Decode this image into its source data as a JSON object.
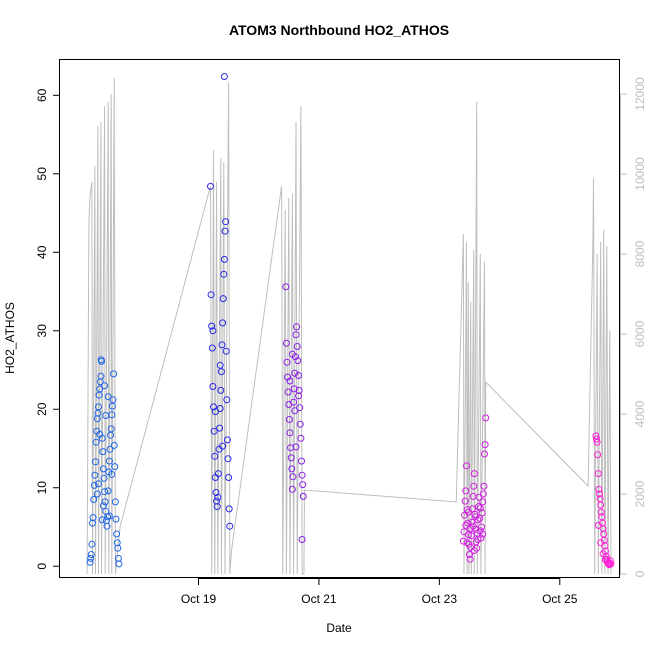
{
  "chart_data": {
    "type": "scatter",
    "title": "ATOM3 Northbound HO2_ATHOS",
    "xlabel": "Date",
    "ylabel": "HO2_ATHOS",
    "x_ticks": [
      "Oct 19",
      "Oct 21",
      "Oct 23",
      "Oct 25"
    ],
    "x_tick_days": [
      19,
      21,
      23,
      25
    ],
    "xlim_days": [
      16.7,
      26.0
    ],
    "ylim": [
      -1.5,
      64.5
    ],
    "y_ticks": [
      0,
      10,
      20,
      30,
      40,
      50,
      60
    ],
    "y2lim": [
      -100,
      12850
    ],
    "y2_ticks": [
      0,
      2000,
      4000,
      6000,
      8000,
      10000,
      12000
    ],
    "y2_series": "altitude",
    "color_scale": [
      "#1f66e5",
      "#2a2ae8",
      "#8a1fe8",
      "#d21ee0",
      "#ff1ed6"
    ],
    "series": [
      {
        "segment": 1,
        "points": [
          [
            17.2,
            0.5
          ],
          [
            17.21,
            1.0
          ],
          [
            17.22,
            1.5
          ],
          [
            17.23,
            2.8
          ],
          [
            17.24,
            5.5
          ],
          [
            17.25,
            6.2
          ],
          [
            17.26,
            8.5
          ],
          [
            17.27,
            10.3
          ],
          [
            17.28,
            11.6
          ],
          [
            17.29,
            13.3
          ],
          [
            17.3,
            15.8
          ],
          [
            17.31,
            17.2
          ],
          [
            17.32,
            18.8
          ],
          [
            17.33,
            19.5
          ],
          [
            17.34,
            20.3
          ],
          [
            17.35,
            21.8
          ],
          [
            17.36,
            22.6
          ],
          [
            17.37,
            23.5
          ],
          [
            17.38,
            24.2
          ],
          [
            17.385,
            26.3
          ],
          [
            17.39,
            26.1
          ],
          [
            17.4,
            16.3
          ],
          [
            17.41,
            14.6
          ],
          [
            17.42,
            12.4
          ],
          [
            17.43,
            11.2
          ],
          [
            17.44,
            9.5
          ],
          [
            17.45,
            8.2
          ],
          [
            17.46,
            7.0
          ],
          [
            17.47,
            5.8
          ],
          [
            17.48,
            5.1
          ],
          [
            17.49,
            6.3
          ],
          [
            17.5,
            9.6
          ],
          [
            17.51,
            12.0
          ],
          [
            17.52,
            13.4
          ],
          [
            17.53,
            14.9
          ],
          [
            17.54,
            16.7
          ],
          [
            17.55,
            17.5
          ],
          [
            17.56,
            19.3
          ],
          [
            17.57,
            20.4
          ],
          [
            17.58,
            21.2
          ],
          [
            17.59,
            24.5
          ],
          [
            17.6,
            15.4
          ],
          [
            17.61,
            12.7
          ],
          [
            17.62,
            8.2
          ],
          [
            17.63,
            6.0
          ],
          [
            17.64,
            4.1
          ],
          [
            17.65,
            3.0
          ],
          [
            17.66,
            2.3
          ],
          [
            17.67,
            1.0
          ],
          [
            17.68,
            0.3
          ],
          [
            17.32,
            9.2
          ],
          [
            17.36,
            16.8
          ],
          [
            17.42,
            7.7
          ],
          [
            17.46,
            19.2
          ],
          [
            17.52,
            6.4
          ],
          [
            17.56,
            11.7
          ],
          [
            17.44,
            23.0
          ],
          [
            17.34,
            10.5
          ],
          [
            17.5,
            21.6
          ],
          [
            17.4,
            5.9
          ]
        ]
      },
      {
        "segment": 2,
        "points": [
          [
            19.2,
            48.4
          ],
          [
            19.21,
            34.6
          ],
          [
            19.22,
            30.6
          ],
          [
            19.23,
            27.8
          ],
          [
            19.24,
            22.9
          ],
          [
            19.25,
            20.3
          ],
          [
            19.26,
            17.2
          ],
          [
            19.27,
            14.0
          ],
          [
            19.28,
            11.3
          ],
          [
            19.29,
            9.4
          ],
          [
            19.3,
            8.3
          ],
          [
            19.31,
            7.6
          ],
          [
            19.32,
            8.8
          ],
          [
            19.33,
            11.8
          ],
          [
            19.34,
            14.9
          ],
          [
            19.35,
            17.6
          ],
          [
            19.36,
            20.1
          ],
          [
            19.37,
            22.4
          ],
          [
            19.38,
            24.8
          ],
          [
            19.39,
            28.2
          ],
          [
            19.4,
            31.0
          ],
          [
            19.41,
            34.1
          ],
          [
            19.42,
            37.2
          ],
          [
            19.43,
            39.1
          ],
          [
            19.44,
            42.7
          ],
          [
            19.45,
            43.9
          ],
          [
            19.46,
            27.4
          ],
          [
            19.47,
            21.2
          ],
          [
            19.48,
            16.1
          ],
          [
            19.49,
            13.7
          ],
          [
            19.5,
            11.3
          ],
          [
            19.51,
            7.3
          ],
          [
            19.52,
            5.1
          ],
          [
            19.43,
            62.4
          ],
          [
            19.24,
            30.0
          ],
          [
            19.36,
            25.6
          ],
          [
            19.28,
            19.7
          ],
          [
            19.4,
            15.3
          ]
        ]
      },
      {
        "segment": 3,
        "points": [
          [
            20.45,
            35.6
          ],
          [
            20.46,
            28.4
          ],
          [
            20.47,
            26.0
          ],
          [
            20.48,
            24.1
          ],
          [
            20.49,
            22.2
          ],
          [
            20.5,
            20.6
          ],
          [
            20.51,
            18.7
          ],
          [
            20.52,
            17.0
          ],
          [
            20.53,
            15.1
          ],
          [
            20.54,
            13.8
          ],
          [
            20.55,
            12.4
          ],
          [
            20.56,
            9.8
          ],
          [
            20.57,
            11.4
          ],
          [
            20.58,
            20.9
          ],
          [
            20.59,
            22.6
          ],
          [
            20.6,
            24.6
          ],
          [
            20.61,
            26.7
          ],
          [
            20.62,
            29.5
          ],
          [
            20.63,
            30.5
          ],
          [
            20.64,
            28.0
          ],
          [
            20.65,
            26.2
          ],
          [
            20.66,
            24.3
          ],
          [
            20.67,
            22.4
          ],
          [
            20.68,
            20.2
          ],
          [
            20.69,
            18.1
          ],
          [
            20.7,
            16.3
          ],
          [
            20.71,
            13.4
          ],
          [
            20.72,
            11.6
          ],
          [
            20.73,
            10.4
          ],
          [
            20.74,
            8.9
          ],
          [
            20.72,
            3.4
          ],
          [
            20.52,
            23.6
          ],
          [
            20.6,
            19.8
          ],
          [
            20.66,
            21.7
          ],
          [
            20.56,
            27.0
          ],
          [
            20.62,
            15.2
          ]
        ]
      },
      {
        "segment": 4,
        "points": [
          [
            23.4,
            3.2
          ],
          [
            23.41,
            4.4
          ],
          [
            23.42,
            6.5
          ],
          [
            23.43,
            8.3
          ],
          [
            23.44,
            9.6
          ],
          [
            23.45,
            12.8
          ],
          [
            23.46,
            7.2
          ],
          [
            23.47,
            5.5
          ],
          [
            23.48,
            4.0
          ],
          [
            23.49,
            2.8
          ],
          [
            23.5,
            1.5
          ],
          [
            23.51,
            0.9
          ],
          [
            23.52,
            2.4
          ],
          [
            23.53,
            3.9
          ],
          [
            23.54,
            5.6
          ],
          [
            23.55,
            7.3
          ],
          [
            23.56,
            8.9
          ],
          [
            23.57,
            10.2
          ],
          [
            23.58,
            11.8
          ],
          [
            23.59,
            6.6
          ],
          [
            23.6,
            4.7
          ],
          [
            23.61,
            3.1
          ],
          [
            23.62,
            2.3
          ],
          [
            23.63,
            4.2
          ],
          [
            23.64,
            5.9
          ],
          [
            23.65,
            7.6
          ],
          [
            23.66,
            8.8
          ],
          [
            23.67,
            6.1
          ],
          [
            23.68,
            4.5
          ],
          [
            23.69,
            3.6
          ],
          [
            23.7,
            5.0
          ],
          [
            23.71,
            6.8
          ],
          [
            23.72,
            8.2
          ],
          [
            23.73,
            9.2
          ],
          [
            23.74,
            10.2
          ],
          [
            23.75,
            14.3
          ],
          [
            23.76,
            15.5
          ],
          [
            23.77,
            18.9
          ],
          [
            23.44,
            5.2
          ],
          [
            23.48,
            6.9
          ],
          [
            23.52,
            4.8
          ],
          [
            23.56,
            5.1
          ],
          [
            23.6,
            6.3
          ],
          [
            23.64,
            3.4
          ],
          [
            23.68,
            7.4
          ],
          [
            23.72,
            4.1
          ],
          [
            23.46,
            3.0
          ],
          [
            23.58,
            2.0
          ]
        ]
      },
      {
        "segment": 5,
        "points": [
          [
            25.6,
            16.6
          ],
          [
            25.61,
            16.2
          ],
          [
            25.62,
            15.8
          ],
          [
            25.63,
            14.2
          ],
          [
            25.64,
            11.8
          ],
          [
            25.65,
            9.8
          ],
          [
            25.66,
            9.2
          ],
          [
            25.67,
            8.6
          ],
          [
            25.68,
            7.8
          ],
          [
            25.69,
            6.9
          ],
          [
            25.7,
            6.3
          ],
          [
            25.71,
            5.5
          ],
          [
            25.72,
            4.8
          ],
          [
            25.73,
            4.1
          ],
          [
            25.74,
            3.3
          ],
          [
            25.75,
            2.6
          ],
          [
            25.76,
            1.9
          ],
          [
            25.77,
            1.3
          ],
          [
            25.78,
            0.9
          ],
          [
            25.79,
            0.6
          ],
          [
            25.8,
            0.4
          ],
          [
            25.81,
            0.3
          ],
          [
            25.82,
            0.2
          ],
          [
            25.83,
            0.4
          ],
          [
            25.84,
            0.7
          ],
          [
            25.85,
            0.3
          ],
          [
            25.64,
            5.2
          ],
          [
            25.68,
            3.0
          ],
          [
            25.72,
            1.6
          ],
          [
            25.76,
            0.8
          ]
        ]
      }
    ],
    "altitude": [
      [
        17.15,
        0
      ],
      [
        17.18,
        8800
      ],
      [
        17.2,
        9500
      ],
      [
        17.23,
        9800
      ],
      [
        17.24,
        0
      ],
      [
        17.28,
        10200
      ],
      [
        17.29,
        0
      ],
      [
        17.33,
        11200
      ],
      [
        17.34,
        0
      ],
      [
        17.38,
        11300
      ],
      [
        17.39,
        0
      ],
      [
        17.44,
        11700
      ],
      [
        17.45,
        0
      ],
      [
        17.5,
        11800
      ],
      [
        17.51,
        0
      ],
      [
        17.55,
        12000
      ],
      [
        17.56,
        0
      ],
      [
        17.6,
        12400
      ],
      [
        17.62,
        0
      ],
      [
        17.7,
        1200
      ],
      [
        19.2,
        9700
      ],
      [
        19.22,
        0
      ],
      [
        19.25,
        10600
      ],
      [
        19.27,
        0
      ],
      [
        19.3,
        9800
      ],
      [
        19.32,
        0
      ],
      [
        19.37,
        10400
      ],
      [
        19.38,
        0
      ],
      [
        19.42,
        10300
      ],
      [
        19.44,
        0
      ],
      [
        19.5,
        12300
      ],
      [
        19.52,
        0
      ],
      [
        19.55,
        600
      ],
      [
        20.38,
        9700
      ],
      [
        20.4,
        0
      ],
      [
        20.44,
        9100
      ],
      [
        20.46,
        0
      ],
      [
        20.5,
        9400
      ],
      [
        20.52,
        0
      ],
      [
        20.56,
        9500
      ],
      [
        20.58,
        0
      ],
      [
        20.62,
        11300
      ],
      [
        20.64,
        0
      ],
      [
        20.7,
        11700
      ],
      [
        20.72,
        0
      ],
      [
        20.75,
        0
      ],
      [
        20.76,
        2100
      ],
      [
        23.28,
        1800
      ],
      [
        23.4,
        8500
      ],
      [
        23.41,
        0
      ],
      [
        23.45,
        8300
      ],
      [
        23.46,
        0
      ],
      [
        23.48,
        7300
      ],
      [
        23.49,
        0
      ],
      [
        23.52,
        6800
      ],
      [
        23.53,
        0
      ],
      [
        23.57,
        8100
      ],
      [
        23.58,
        0
      ],
      [
        23.62,
        11800
      ],
      [
        23.63,
        0
      ],
      [
        23.68,
        8000
      ],
      [
        23.69,
        0
      ],
      [
        23.75,
        7800
      ],
      [
        23.76,
        0
      ],
      [
        23.77,
        4800
      ],
      [
        25.47,
        2200
      ],
      [
        25.55,
        8300
      ],
      [
        25.56,
        9900
      ],
      [
        25.58,
        0
      ],
      [
        25.62,
        8000
      ],
      [
        25.64,
        0
      ],
      [
        25.68,
        8300
      ],
      [
        25.7,
        0
      ],
      [
        25.73,
        8600
      ],
      [
        25.75,
        0
      ],
      [
        25.78,
        8200
      ],
      [
        25.8,
        0
      ],
      [
        25.83,
        6100
      ],
      [
        25.85,
        0
      ]
    ]
  }
}
